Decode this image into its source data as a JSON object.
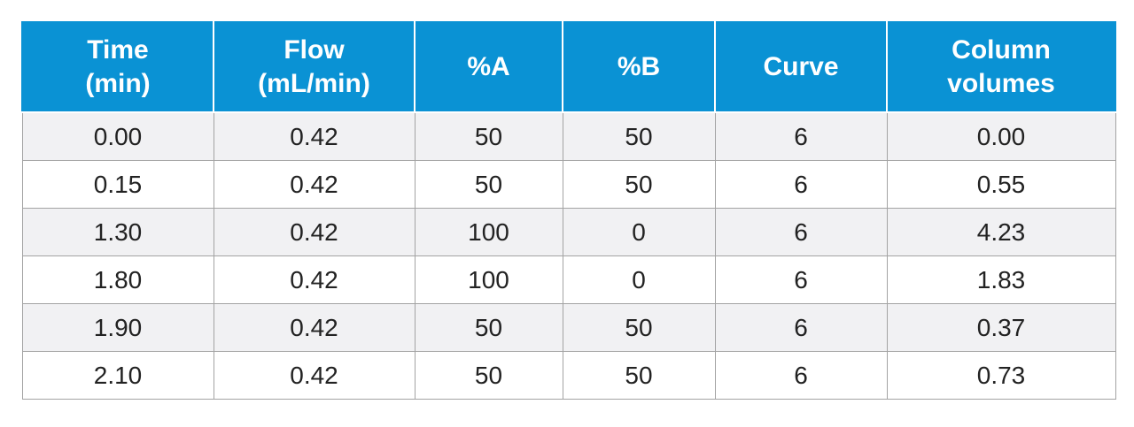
{
  "table": {
    "headers": [
      "Time\n(min)",
      "Flow\n(mL/min)",
      "%A",
      "%B",
      "Curve",
      "Column\nvolumes"
    ],
    "rows": [
      [
        "0.00",
        "0.42",
        "50",
        "50",
        "6",
        "0.00"
      ],
      [
        "0.15",
        "0.42",
        "50",
        "50",
        "6",
        "0.55"
      ],
      [
        "1.30",
        "0.42",
        "100",
        "0",
        "6",
        "4.23"
      ],
      [
        "1.80",
        "0.42",
        "100",
        "0",
        "6",
        "1.83"
      ],
      [
        "1.90",
        "0.42",
        "50",
        "50",
        "6",
        "0.37"
      ],
      [
        "2.10",
        "0.42",
        "50",
        "50",
        "6",
        "0.73"
      ]
    ]
  },
  "colors": {
    "header_bg": "#0a92d4",
    "header_text": "#ffffff",
    "row_alt_bg": "#f1f1f3",
    "border": "#a3a3a3"
  }
}
